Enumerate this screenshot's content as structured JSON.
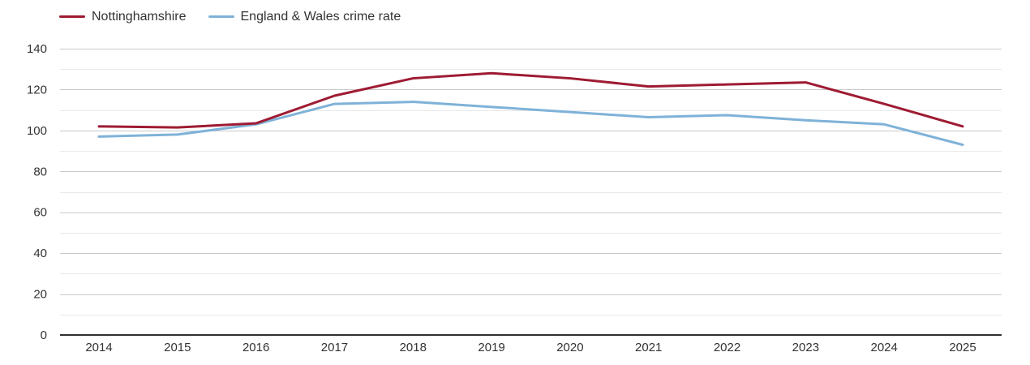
{
  "legend": {
    "items": [
      {
        "label": "Nottinghamshire"
      },
      {
        "label": "England & Wales crime rate"
      }
    ]
  },
  "chart_data": {
    "type": "line",
    "title": "",
    "xlabel": "",
    "ylabel": "",
    "categories": [
      "2014",
      "2015",
      "2016",
      "2017",
      "2018",
      "2019",
      "2020",
      "2021",
      "2022",
      "2023",
      "2024",
      "2025"
    ],
    "series": [
      {
        "name": "Nottinghamshire",
        "color": "#9e1b32",
        "values": [
          102,
          101.5,
          103.5,
          117,
          125.5,
          128,
          125.5,
          121.5,
          122.5,
          123.5,
          113,
          102
        ]
      },
      {
        "name": "England & Wales crime rate",
        "color": "#7fb2d8",
        "values": [
          97,
          98,
          103,
          113,
          114,
          111.5,
          109,
          106.5,
          107.5,
          105,
          103,
          93
        ]
      }
    ],
    "ylim": [
      0,
      140
    ],
    "y_ticks": [
      0,
      20,
      40,
      60,
      80,
      100,
      120,
      140
    ],
    "y_minor_step": 10,
    "grid": true,
    "legend_position": "top-left"
  },
  "colors": {
    "grid_major": "#c9c9c9",
    "grid_minor": "#e9e9e9",
    "axis_line": "#2f2f2f",
    "tick_text": "#333333"
  }
}
